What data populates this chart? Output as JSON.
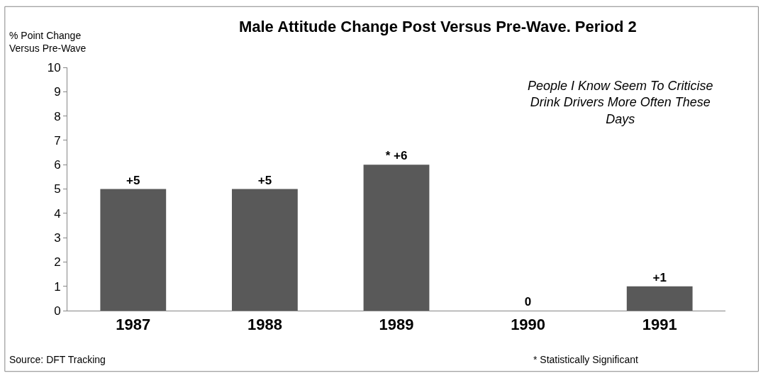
{
  "chart_data": {
    "type": "bar",
    "title": "Male Attitude Change Post Versus Pre-Wave. Period 2",
    "ylabel": "% Point Change\nVersus Pre-Wave",
    "categories": [
      "1987",
      "1988",
      "1989",
      "1990",
      "1991"
    ],
    "values": [
      5,
      5,
      6,
      0,
      1
    ],
    "color": "#595959",
    "value_labels": [
      "+5",
      "+5",
      "* +6",
      "0",
      "+1"
    ],
    "ylim": [
      0,
      10
    ],
    "yticks": [
      0,
      1,
      2,
      3,
      4,
      5,
      6,
      7,
      8,
      9,
      10
    ],
    "legend": false,
    "annotations": [
      "People I Know Seem To Criticise\nDrink Drivers More Often These\nDays",
      "Source: DFT Tracking",
      "* Statistically Significant"
    ]
  }
}
